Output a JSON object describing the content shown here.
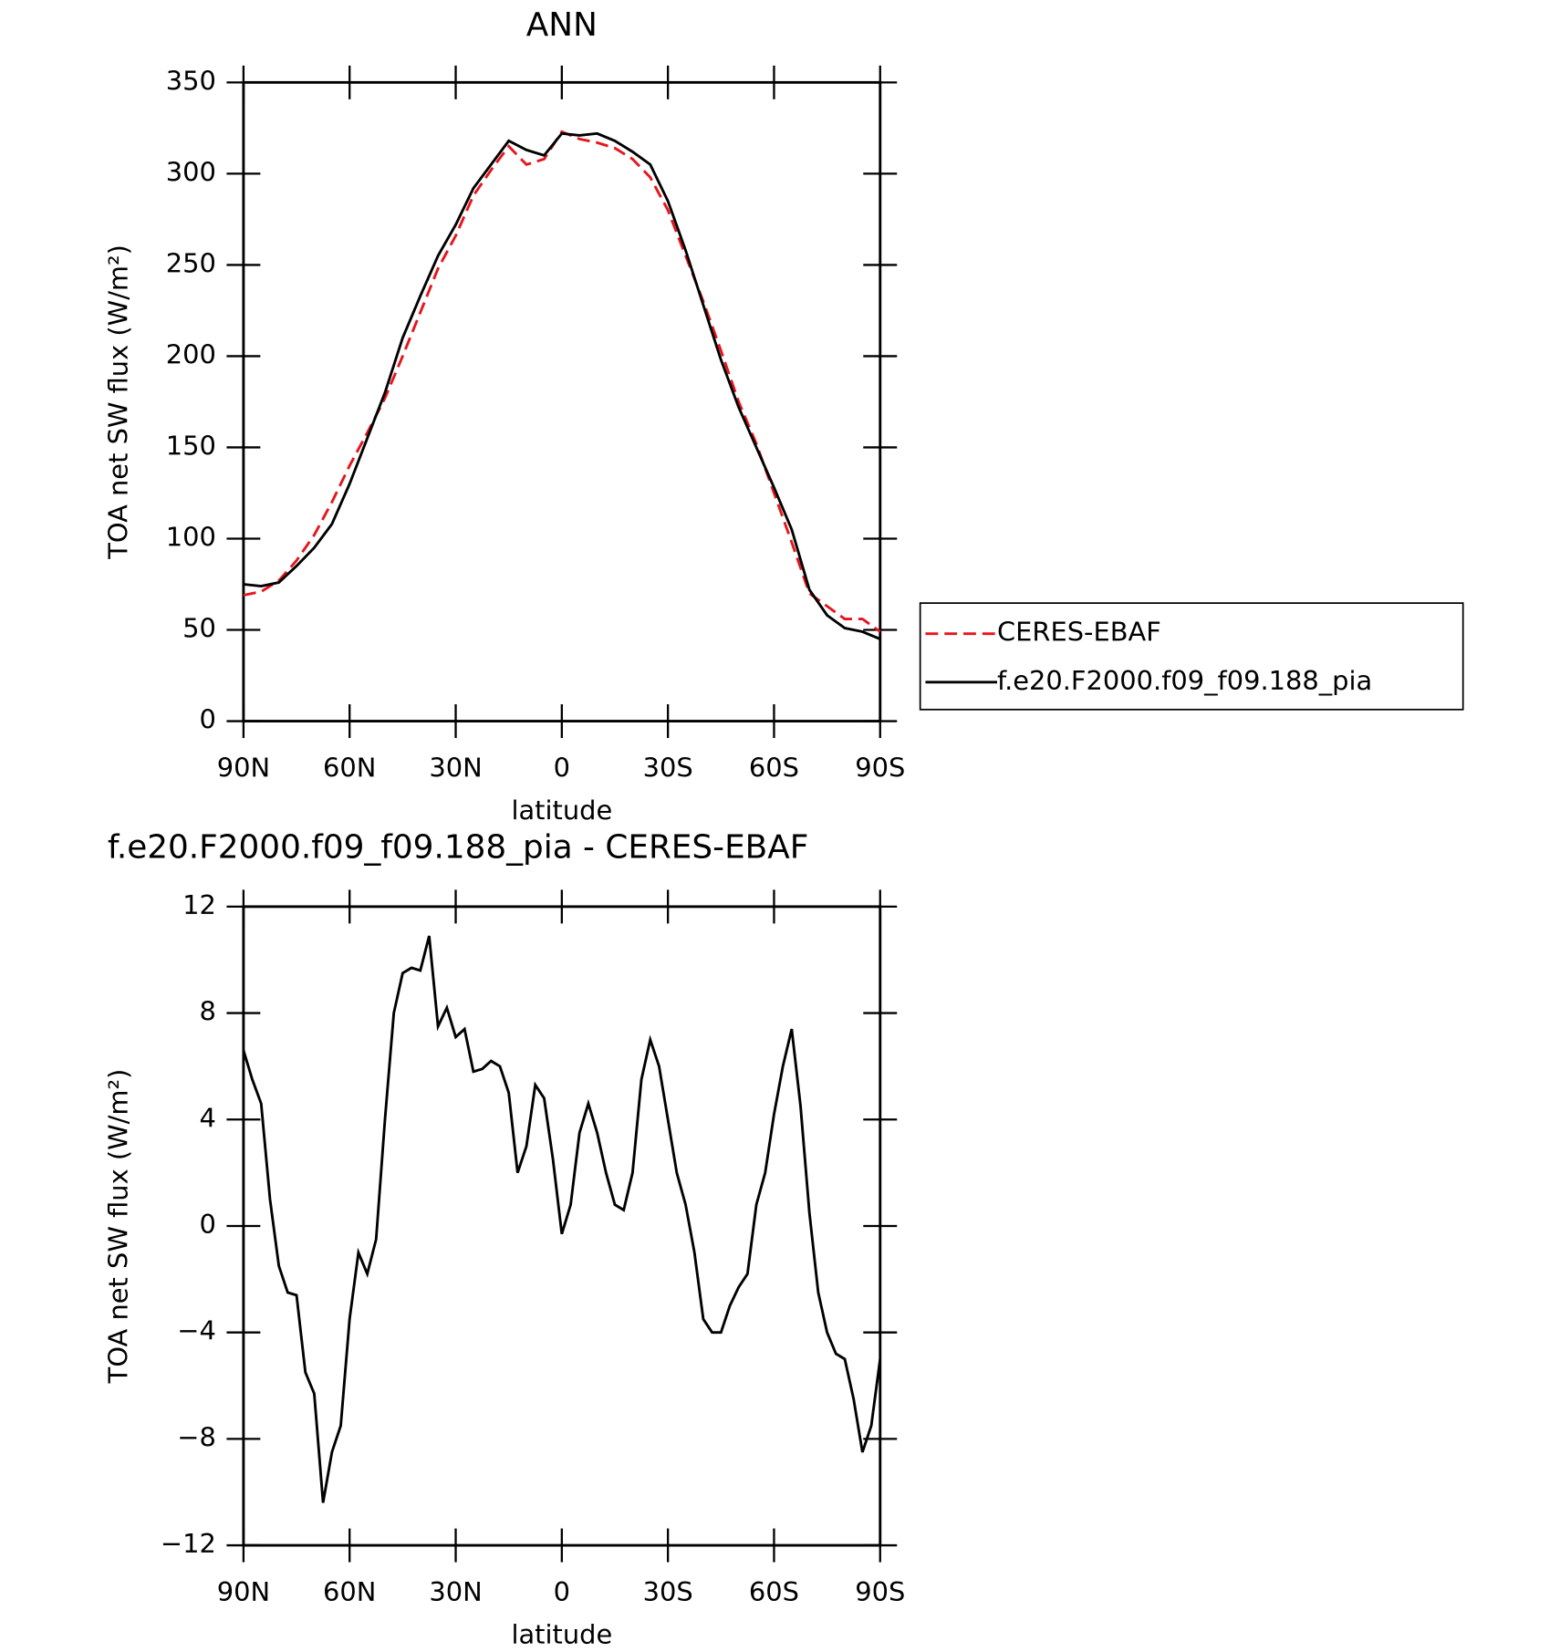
{
  "chart_data": [
    {
      "type": "line",
      "title": "ANN",
      "xlabel": "latitude",
      "ylabel": "TOA net SW flux (W/m²)",
      "xlim": [
        90,
        -90
      ],
      "xticks": [
        {
          "value": 90,
          "label": "90N"
        },
        {
          "value": 60,
          "label": "60N"
        },
        {
          "value": 30,
          "label": "30N"
        },
        0,
        {
          "value": -30,
          "label": "30S"
        },
        {
          "value": -60,
          "label": "60S"
        },
        {
          "value": -90,
          "label": "90S"
        }
      ],
      "ylim": [
        0,
        350
      ],
      "yticks": [
        0,
        50,
        100,
        150,
        200,
        250,
        300,
        350
      ],
      "x": [
        90,
        85,
        80,
        75,
        70,
        65,
        60,
        55,
        50,
        45,
        40,
        35,
        30,
        25,
        20,
        15,
        10,
        5,
        0,
        -5,
        -10,
        -15,
        -20,
        -25,
        -30,
        -35,
        -40,
        -45,
        -50,
        -55,
        -60,
        -65,
        -70,
        -75,
        -80,
        -85,
        -90
      ],
      "legend": "right",
      "series": [
        {
          "name": "CERES-EBAF",
          "color": "#e8141c",
          "dash": true,
          "values": [
            69,
            71,
            77,
            88,
            102,
            120,
            140,
            158,
            177,
            200,
            224,
            248,
            266,
            288,
            302,
            315,
            305,
            308,
            323,
            319,
            317,
            314,
            308,
            298,
            280,
            255,
            230,
            203,
            175,
            152,
            125,
            98,
            70,
            63,
            56,
            56,
            49
          ]
        },
        {
          "name": "f.e20.F2000.f09_f09.188_pia",
          "color": "#000000",
          "dash": false,
          "values": [
            75,
            74,
            76,
            85,
            95,
            108,
            130,
            155,
            180,
            210,
            233,
            255,
            272,
            292,
            305,
            318,
            313,
            310,
            322,
            321,
            322,
            318,
            312,
            305,
            285,
            258,
            228,
            198,
            172,
            150,
            128,
            105,
            72,
            58,
            51,
            49,
            45
          ]
        }
      ]
    },
    {
      "type": "line",
      "title": "f.e20.F2000.f09_f09.188_pia - CERES-EBAF",
      "xlabel": "latitude",
      "ylabel": "TOA net SW flux (W/m²)",
      "xlim": [
        90,
        -90
      ],
      "xticks": [
        {
          "value": 90,
          "label": "90N"
        },
        {
          "value": 60,
          "label": "60N"
        },
        {
          "value": 30,
          "label": "30N"
        },
        0,
        {
          "value": -30,
          "label": "30S"
        },
        {
          "value": -60,
          "label": "60S"
        },
        {
          "value": -90,
          "label": "90S"
        }
      ],
      "ylim": [
        -12,
        12
      ],
      "yticks": [
        {
          "value": -12,
          "label": "−12"
        },
        {
          "value": -8,
          "label": "−8"
        },
        {
          "value": -4,
          "label": "−4"
        },
        0,
        4,
        8,
        12
      ],
      "color": "#000000",
      "x": [
        90,
        87.5,
        85,
        82.5,
        80,
        77.5,
        75,
        72.5,
        70,
        67.5,
        65,
        62.5,
        60,
        57.5,
        55,
        52.5,
        50,
        47.5,
        45,
        42.5,
        40,
        37.5,
        35,
        32.5,
        30,
        27.5,
        25,
        22.5,
        20,
        17.5,
        15,
        12.5,
        10,
        7.5,
        5,
        2.5,
        0,
        -2.5,
        -5,
        -7.5,
        -10,
        -12.5,
        -15,
        -17.5,
        -20,
        -22.5,
        -25,
        -27.5,
        -30,
        -32.5,
        -35,
        -37.5,
        -40,
        -42.5,
        -45,
        -47.5,
        -50,
        -52.5,
        -55,
        -57.5,
        -60,
        -62.5,
        -65,
        -67.5,
        -70,
        -72.5,
        -75,
        -77.5,
        -80,
        -82.5,
        -85,
        -87.5,
        -90
      ],
      "values": [
        6.6,
        5.5,
        4.6,
        1.0,
        -1.5,
        -2.5,
        -2.6,
        -5.5,
        -6.3,
        -10.4,
        -8.5,
        -7.5,
        -3.5,
        -1.0,
        -1.8,
        -0.5,
        4.0,
        8.0,
        9.5,
        9.7,
        9.6,
        10.9,
        7.5,
        8.2,
        7.1,
        7.4,
        5.8,
        5.9,
        6.2,
        6.0,
        5.0,
        2.0,
        3.0,
        5.3,
        4.8,
        2.5,
        -0.3,
        0.8,
        3.5,
        4.6,
        3.5,
        2.0,
        0.8,
        0.6,
        2.0,
        5.5,
        7.0,
        6.0,
        4.0,
        2.0,
        0.8,
        -1.0,
        -3.5,
        -4.0,
        -4.0,
        -3.0,
        -2.3,
        -1.8,
        0.8,
        2.0,
        4.2,
        6.0,
        7.4,
        4.5,
        0.5,
        -2.5,
        -4.0,
        -4.8,
        -5.0,
        -6.5,
        -8.5,
        -7.5,
        -5.0
      ]
    }
  ]
}
